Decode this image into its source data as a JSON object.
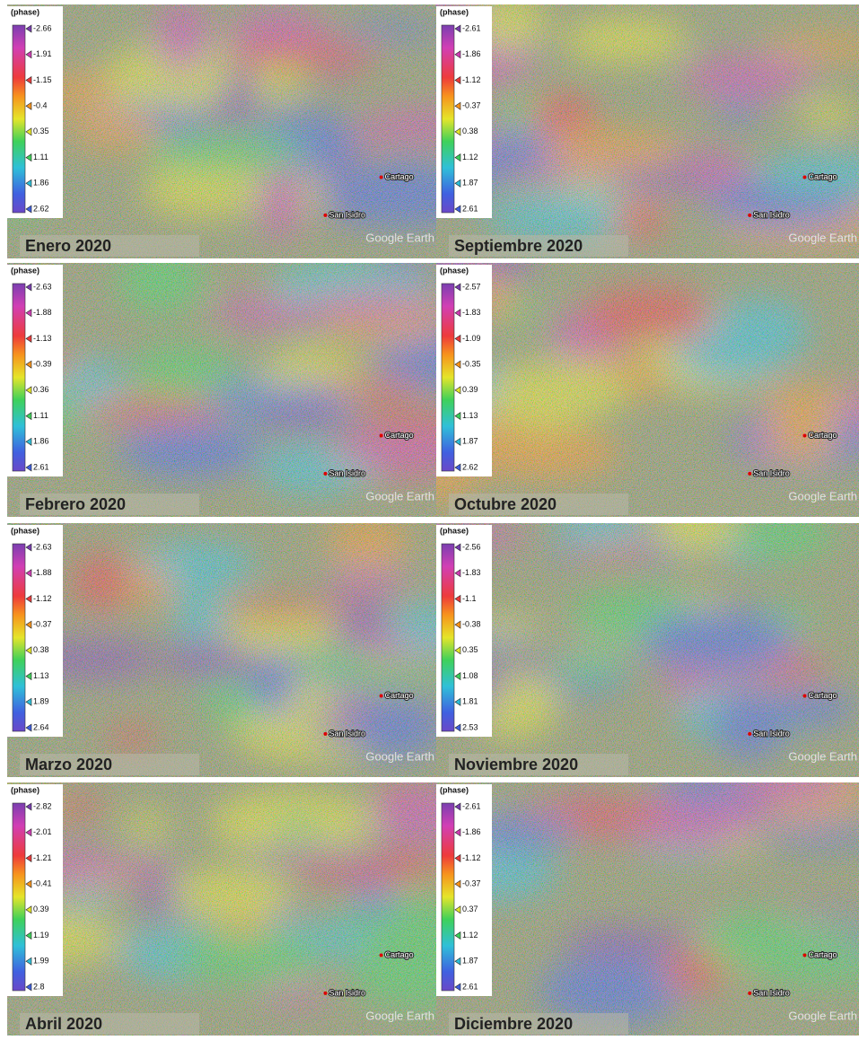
{
  "places": [
    "Cartago",
    "San Isidro"
  ],
  "watermark": "Google Earth",
  "panels": [
    {
      "title": "Enero 2020",
      "colorbar": {
        "label": "(phase)",
        "ticks": [
          -2.66,
          -1.91,
          -1.15,
          -0.4,
          0.35,
          1.11,
          1.86,
          2.62
        ]
      }
    },
    {
      "title": "Septiembre 2020",
      "colorbar": {
        "label": "(phase)",
        "ticks": [
          -2.61,
          -1.86,
          -1.12,
          -0.37,
          0.38,
          1.12,
          1.87,
          2.61
        ]
      }
    },
    {
      "title": "Febrero 2020",
      "colorbar": {
        "label": "(phase)",
        "ticks": [
          -2.63,
          -1.88,
          -1.13,
          -0.39,
          0.36,
          1.11,
          1.86,
          2.61
        ]
      }
    },
    {
      "title": "Octubre 2020",
      "colorbar": {
        "label": "(phase)",
        "ticks": [
          -2.57,
          -1.83,
          -1.09,
          -0.35,
          0.39,
          1.13,
          1.87,
          2.62
        ]
      }
    },
    {
      "title": "Marzo 2020",
      "colorbar": {
        "label": "(phase)",
        "ticks": [
          -2.63,
          -1.88,
          -1.12,
          -0.37,
          0.38,
          1.13,
          1.89,
          2.64
        ]
      }
    },
    {
      "title": "Noviembre 2020",
      "colorbar": {
        "label": "(phase)",
        "ticks": [
          -2.56,
          -1.83,
          -1.1,
          -0.38,
          0.35,
          1.08,
          1.81,
          2.53
        ]
      }
    },
    {
      "title": "Abril 2020",
      "colorbar": {
        "label": "(phase)",
        "ticks": [
          -2.82,
          -2.01,
          -1.21,
          -0.41,
          0.39,
          1.19,
          1.99,
          2.8
        ]
      }
    },
    {
      "title": "Diciembre 2020",
      "colorbar": {
        "label": "(phase)",
        "ticks": [
          -2.61,
          -1.86,
          -1.12,
          -0.37,
          0.37,
          1.12,
          1.87,
          2.61
        ]
      }
    }
  ]
}
